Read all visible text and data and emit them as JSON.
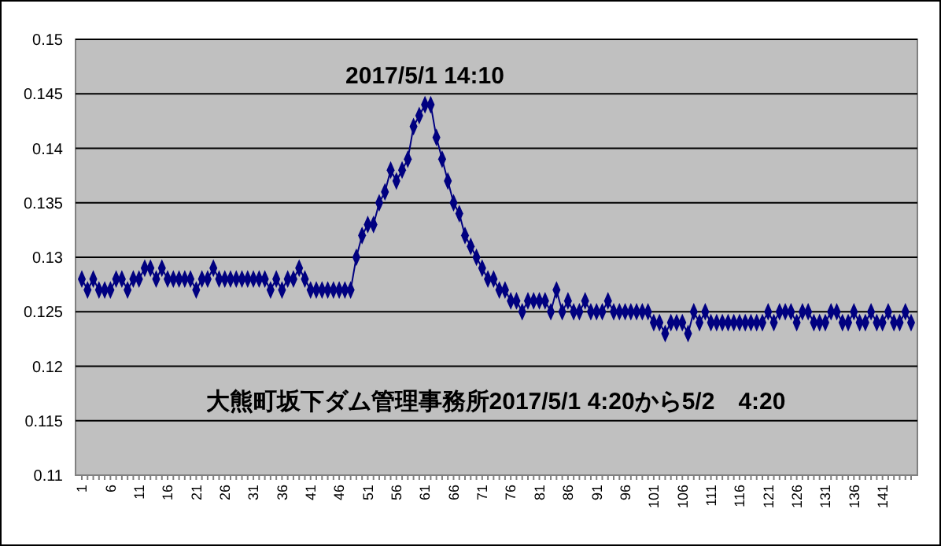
{
  "chart_data": {
    "type": "line",
    "categories": [
      "1",
      null,
      null,
      null,
      null,
      "6",
      null,
      null,
      null,
      null,
      "11",
      null,
      null,
      null,
      null,
      "16",
      null,
      null,
      null,
      null,
      "21",
      null,
      null,
      null,
      null,
      "26",
      null,
      null,
      null,
      null,
      "31",
      null,
      null,
      null,
      null,
      "36",
      null,
      null,
      null,
      null,
      "41",
      null,
      null,
      null,
      null,
      "46",
      null,
      null,
      null,
      null,
      "51",
      null,
      null,
      null,
      null,
      "56",
      null,
      null,
      null,
      null,
      "61",
      null,
      null,
      null,
      null,
      "66",
      null,
      null,
      null,
      null,
      "71",
      null,
      null,
      null,
      null,
      "76",
      null,
      null,
      null,
      null,
      "81",
      null,
      null,
      null,
      null,
      "86",
      null,
      null,
      null,
      null,
      "91",
      null,
      null,
      null,
      null,
      "96",
      null,
      null,
      null,
      null,
      "101",
      null,
      null,
      null,
      null,
      "106",
      null,
      null,
      null,
      null,
      "111",
      null,
      null,
      null,
      null,
      "116",
      null,
      null,
      null,
      null,
      "121",
      null,
      null,
      null,
      null,
      "126",
      null,
      null,
      null,
      null,
      "131",
      null,
      null,
      null,
      null,
      "136",
      null,
      null,
      null,
      null,
      "141",
      null,
      null,
      null,
      null,
      null
    ],
    "series": [
      {
        "color": "#000080",
        "values": [
          0.128,
          0.127,
          0.128,
          0.127,
          0.127,
          0.127,
          0.128,
          0.128,
          0.127,
          0.128,
          0.128,
          0.129,
          0.129,
          0.128,
          0.129,
          0.128,
          0.128,
          0.128,
          0.128,
          0.128,
          0.127,
          0.128,
          0.128,
          0.129,
          0.128,
          0.128,
          0.128,
          0.128,
          0.128,
          0.128,
          0.128,
          0.128,
          0.128,
          0.127,
          0.128,
          0.127,
          0.128,
          0.128,
          0.129,
          0.128,
          0.127,
          0.127,
          0.127,
          0.127,
          0.127,
          0.127,
          0.127,
          0.127,
          0.13,
          0.132,
          0.133,
          0.133,
          0.135,
          0.136,
          0.138,
          0.137,
          0.138,
          0.139,
          0.142,
          0.143,
          0.144,
          0.144,
          0.141,
          0.139,
          0.137,
          0.135,
          0.134,
          0.132,
          0.131,
          0.13,
          0.129,
          0.128,
          0.128,
          0.127,
          0.127,
          0.126,
          0.126,
          0.125,
          0.126,
          0.126,
          0.126,
          0.126,
          0.125,
          0.127,
          0.125,
          0.126,
          0.125,
          0.125,
          0.126,
          0.125,
          0.125,
          0.125,
          0.126,
          0.125,
          0.125,
          0.125,
          0.125,
          0.125,
          0.125,
          0.125,
          0.124,
          0.124,
          0.123,
          0.124,
          0.124,
          0.124,
          0.123,
          0.125,
          0.124,
          0.125,
          0.124,
          0.124,
          0.124,
          0.124,
          0.124,
          0.124,
          0.124,
          0.124,
          0.124,
          0.124,
          0.125,
          0.124,
          0.125,
          0.125,
          0.125,
          0.124,
          0.125,
          0.125,
          0.124,
          0.124,
          0.124,
          0.125,
          0.125,
          0.124,
          0.124,
          0.125,
          0.124,
          0.124,
          0.125,
          0.124,
          0.124,
          0.125,
          0.124,
          0.124,
          0.125,
          0.124
        ]
      }
    ],
    "ylim": [
      0.11,
      0.15
    ],
    "yticks": [
      0.11,
      0.115,
      0.12,
      0.125,
      0.13,
      0.135,
      0.14,
      0.145,
      0.15
    ],
    "grid": "y",
    "marker": "diamond",
    "line_style": "solid",
    "annotations": [
      "2017/5/1 14:10",
      "大熊町坂下ダム管理事務所2017/5/1 4:20から5/2　4:20"
    ]
  }
}
